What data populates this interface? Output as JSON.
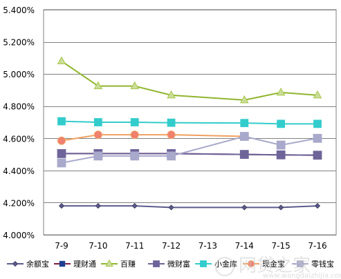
{
  "chart_data": {
    "type": "line",
    "categories": [
      "7-9",
      "7-10",
      "7-11",
      "7-12",
      "7-13",
      "7-14",
      "7-15",
      "7-16"
    ],
    "ylim": [
      4.0,
      5.4
    ],
    "y_ticks": [
      "4.000%",
      "4.200%",
      "4.400%",
      "4.600%",
      "4.800%",
      "5.000%",
      "5.200%",
      "5.400%"
    ],
    "y_tick_values": [
      4.0,
      4.2,
      4.4,
      4.6,
      4.8,
      5.0,
      5.2,
      5.4
    ],
    "grid": "horizontal",
    "legend_position": "bottom",
    "series": [
      {
        "name": "余额宝",
        "color": "#5b5b8c",
        "marker": "diamond",
        "values": [
          4.18,
          4.18,
          4.18,
          4.17,
          null,
          4.17,
          4.17,
          4.18
        ]
      },
      {
        "name": "理财通",
        "color": "#1f3f8f",
        "line_color": "#7b1a44",
        "marker": "square",
        "values": [
          4.505,
          4.505,
          4.505,
          4.505,
          null,
          4.5,
          4.497,
          4.495
        ]
      },
      {
        "name": "百赚",
        "color": "#a6c84a",
        "line_color": "#8fb52c",
        "marker": "triangle",
        "values": [
          5.08,
          4.925,
          4.925,
          4.868,
          null,
          4.838,
          4.885,
          4.868
        ]
      },
      {
        "name": "微财富",
        "color": "#6e6499",
        "marker": "square",
        "values": [
          4.505,
          4.505,
          4.505,
          4.505,
          null,
          4.5,
          4.497,
          4.495
        ]
      },
      {
        "name": "小金库",
        "color": "#33cccc",
        "marker": "square",
        "values": [
          4.706,
          4.7,
          4.7,
          4.697,
          null,
          4.695,
          4.69,
          4.69
        ]
      },
      {
        "name": "现金宝",
        "color": "#f0a060",
        "marker": "circle",
        "values": [
          4.585,
          4.622,
          4.622,
          4.622,
          null,
          4.612,
          null,
          null
        ]
      },
      {
        "name": "零钱宝",
        "color": "#a9a9cc",
        "marker": "square",
        "values": [
          4.447,
          4.49,
          4.49,
          4.49,
          null,
          4.612,
          4.558,
          4.6
        ]
      }
    ]
  },
  "watermark": {
    "text": "网贷之家",
    "url": "www.wangdaizhijia.com"
  }
}
